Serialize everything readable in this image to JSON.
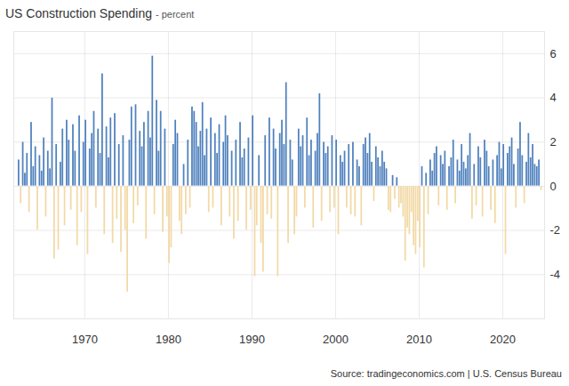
{
  "chart_data": {
    "type": "bar",
    "title": "US Construction Spending",
    "subtitle": "- percent",
    "source": "Source: tradingeconomics.com | U.S. Census Bureau",
    "x": [
      1962,
      1962.25,
      1962.5,
      1962.75,
      1963,
      1963.25,
      1963.5,
      1963.75,
      1964,
      1964.25,
      1964.5,
      1964.75,
      1965,
      1965.25,
      1965.5,
      1965.75,
      1966,
      1966.25,
      1966.5,
      1966.75,
      1967,
      1967.25,
      1967.5,
      1967.75,
      1968,
      1968.25,
      1968.5,
      1968.75,
      1969,
      1969.25,
      1969.5,
      1969.75,
      1970,
      1970.25,
      1970.5,
      1970.75,
      1971,
      1971.25,
      1971.5,
      1971.75,
      1972,
      1972.25,
      1972.5,
      1972.75,
      1973,
      1973.25,
      1973.5,
      1973.75,
      1974,
      1974.25,
      1974.5,
      1974.75,
      1975,
      1975.25,
      1975.5,
      1975.75,
      1976,
      1976.25,
      1976.5,
      1976.75,
      1977,
      1977.25,
      1977.5,
      1977.75,
      1978,
      1978.25,
      1978.5,
      1978.75,
      1979,
      1979.25,
      1979.5,
      1979.75,
      1980,
      1980.25,
      1980.5,
      1980.75,
      1981,
      1981.25,
      1981.5,
      1981.75,
      1982,
      1982.25,
      1982.5,
      1982.75,
      1983,
      1983.25,
      1983.5,
      1983.75,
      1984,
      1984.25,
      1984.5,
      1984.75,
      1985,
      1985.25,
      1985.5,
      1985.75,
      1986,
      1986.25,
      1986.5,
      1986.75,
      1987,
      1987.25,
      1987.5,
      1987.75,
      1988,
      1988.25,
      1988.5,
      1988.75,
      1989,
      1989.25,
      1989.5,
      1989.75,
      1990,
      1990.25,
      1990.5,
      1990.75,
      1991,
      1991.25,
      1991.5,
      1991.75,
      1992,
      1992.25,
      1992.5,
      1992.75,
      1993,
      1993.25,
      1993.5,
      1993.75,
      1994,
      1994.25,
      1994.5,
      1994.75,
      1995,
      1995.25,
      1995.5,
      1995.75,
      1996,
      1996.25,
      1996.5,
      1996.75,
      1997,
      1997.25,
      1997.5,
      1997.75,
      1998,
      1998.25,
      1998.5,
      1998.75,
      1999,
      1999.25,
      1999.5,
      1999.75,
      2000,
      2000.25,
      2000.5,
      2000.75,
      2001,
      2001.25,
      2001.5,
      2001.75,
      2002,
      2002.25,
      2002.5,
      2002.75,
      2003,
      2003.25,
      2003.5,
      2003.75,
      2004,
      2004.25,
      2004.5,
      2004.75,
      2005,
      2005.25,
      2005.5,
      2005.75,
      2006,
      2006.25,
      2006.5,
      2006.75,
      2007,
      2007.25,
      2007.5,
      2007.75,
      2008,
      2008.25,
      2008.5,
      2008.75,
      2009,
      2009.25,
      2009.5,
      2009.75,
      2010,
      2010.25,
      2010.5,
      2010.75,
      2011,
      2011.25,
      2011.5,
      2011.75,
      2012,
      2012.25,
      2012.5,
      2012.75,
      2013,
      2013.25,
      2013.5,
      2013.75,
      2014,
      2014.25,
      2014.5,
      2014.75,
      2015,
      2015.25,
      2015.5,
      2015.75,
      2016,
      2016.25,
      2016.5,
      2016.75,
      2017,
      2017.25,
      2017.5,
      2017.75,
      2018,
      2018.25,
      2018.5,
      2018.75,
      2019,
      2019.25,
      2019.5,
      2019.75,
      2020,
      2020.25,
      2020.5,
      2020.75,
      2021,
      2021.25,
      2021.5,
      2021.75,
      2022,
      2022.25,
      2022.5,
      2022.75,
      2023,
      2023.25,
      2023.5,
      2023.75,
      2024,
      2024.25,
      2024.5
    ],
    "values": [
      1.2,
      -0.8,
      2.0,
      0.6,
      1.5,
      -1.2,
      2.9,
      0.9,
      1.8,
      -2.0,
      1.4,
      0.7,
      2.2,
      -1.4,
      1.6,
      0.8,
      4.0,
      -3.3,
      1.9,
      -2.9,
      1.1,
      2.6,
      -1.8,
      3.0,
      2.1,
      -1.1,
      2.8,
      1.6,
      -2.7,
      3.2,
      -1.2,
      2.0,
      3.0,
      -3.1,
      1.7,
      2.4,
      3.4,
      -1.0,
      2.6,
      1.5,
      5.1,
      -2.2,
      2.7,
      1.3,
      3.1,
      -2.6,
      3.3,
      -1.5,
      1.9,
      -3.0,
      2.3,
      -2.0,
      -4.8,
      2.1,
      3.6,
      -1.7,
      3.7,
      -0.9,
      2.5,
      1.8,
      2.9,
      -2.4,
      3.4,
      2.2,
      5.9,
      -1.3,
      3.9,
      1.6,
      3.4,
      -2.1,
      2.6,
      -1.4,
      -3.5,
      -2.8,
      1.9,
      3.0,
      2.4,
      -1.6,
      -2.2,
      1.0,
      -1.3,
      2.1,
      -1.0,
      3.6,
      3.4,
      2.9,
      1.8,
      2.5,
      3.8,
      1.4,
      2.6,
      -1.2,
      3.1,
      -1.0,
      2.4,
      1.5,
      2.8,
      -1.8,
      2.0,
      3.2,
      2.3,
      -1.4,
      1.6,
      -2.4,
      2.1,
      -1.6,
      2.9,
      1.3,
      1.7,
      -2.0,
      2.2,
      -1.1,
      3.2,
      -4.1,
      -1.8,
      1.4,
      -2.6,
      -3.9,
      2.3,
      -1.3,
      3.1,
      -1.5,
      2.6,
      1.7,
      -4.1,
      2.4,
      3.0,
      1.9,
      4.7,
      -2.6,
      2.1,
      1.2,
      -2.2,
      -1.4,
      2.6,
      1.8,
      2.3,
      -1.0,
      3.1,
      1.4,
      2.1,
      -1.9,
      1.6,
      2.4,
      4.2,
      -1.6,
      2.0,
      1.5,
      1.8,
      -1.2,
      2.3,
      -1.0,
      2.1,
      -2.2,
      1.4,
      1.1,
      1.6,
      -1.0,
      1.9,
      -1.3,
      2.0,
      -1.4,
      1.2,
      0.9,
      -1.8,
      1.9,
      2.2,
      1.5,
      2.4,
      1.1,
      -0.7,
      1.8,
      1.3,
      0.9,
      1.6,
      1.1,
      0.8,
      -1.1,
      -1.2,
      0.5,
      -0.6,
      0.4,
      -1.0,
      -0.8,
      -1.4,
      -3.4,
      -1.9,
      -2.2,
      -1.2,
      -2.7,
      -3.1,
      -1.6,
      -2.8,
      0.9,
      -3.7,
      0.6,
      -1.3,
      1.2,
      0.7,
      1.5,
      1.8,
      -0.9,
      1.4,
      1.0,
      1.6,
      -1.1,
      0.9,
      1.3,
      2.1,
      -0.8,
      1.2,
      0.7,
      1.9,
      1.1,
      0.8,
      1.4,
      2.4,
      -1.5,
      1.0,
      -0.9,
      1.8,
      1.3,
      -1.4,
      2.1,
      1.6,
      0.9,
      -1.1,
      1.2,
      -1.7,
      1.4,
      2.0,
      0.8,
      1.9,
      -3.1,
      1.5,
      1.8,
      2.2,
      1.0,
      -1.0,
      1.7,
      2.9,
      1.4,
      -0.8,
      1.1,
      2.4,
      1.3,
      1.9,
      1.0,
      0.9,
      1.2,
      -0.2
    ],
    "colors": [
      "#4f81bd",
      "#f2d9a6",
      "#4f81bd",
      "#4f81bd",
      "#4f81bd",
      "#f2d9a6",
      "#4f81bd",
      "#4f81bd",
      "#4f81bd",
      "#f2d9a6",
      "#4f81bd",
      "#4f81bd",
      "#4f81bd",
      "#f2d9a6",
      "#4f81bd",
      "#4f81bd",
      "#4f81bd",
      "#f2d9a6",
      "#4f81bd",
      "#f2d9a6",
      "#4f81bd",
      "#4f81bd",
      "#f2d9a6",
      "#4f81bd",
      "#4f81bd",
      "#f2d9a6",
      "#4f81bd",
      "#4f81bd",
      "#f2d9a6",
      "#4f81bd",
      "#f2d9a6",
      "#4f81bd",
      "#4f81bd",
      "#f2d9a6",
      "#4f81bd",
      "#4f81bd",
      "#4f81bd",
      "#f2d9a6",
      "#4f81bd",
      "#4f81bd",
      "#4f81bd",
      "#f2d9a6",
      "#4f81bd",
      "#4f81bd",
      "#4f81bd",
      "#f2d9a6",
      "#4f81bd",
      "#f2d9a6",
      "#4f81bd",
      "#f2d9a6",
      "#4f81bd",
      "#f2d9a6",
      "#f2d9a6",
      "#4f81bd",
      "#4f81bd",
      "#f2d9a6",
      "#4f81bd",
      "#f2d9a6",
      "#4f81bd",
      "#4f81bd",
      "#4f81bd",
      "#f2d9a6",
      "#4f81bd",
      "#4f81bd",
      "#4f81bd",
      "#f2d9a6",
      "#4f81bd",
      "#4f81bd",
      "#4f81bd",
      "#f2d9a6",
      "#4f81bd",
      "#f2d9a6",
      "#f2d9a6",
      "#f2d9a6",
      "#4f81bd",
      "#4f81bd",
      "#4f81bd",
      "#f2d9a6",
      "#f2d9a6",
      "#4f81bd",
      "#f2d9a6",
      "#4f81bd",
      "#f2d9a6",
      "#4f81bd",
      "#4f81bd",
      "#4f81bd",
      "#4f81bd",
      "#4f81bd",
      "#4f81bd",
      "#4f81bd",
      "#4f81bd",
      "#f2d9a6",
      "#4f81bd",
      "#f2d9a6",
      "#4f81bd",
      "#4f81bd",
      "#4f81bd",
      "#f2d9a6",
      "#4f81bd",
      "#4f81bd",
      "#4f81bd",
      "#f2d9a6",
      "#4f81bd",
      "#f2d9a6",
      "#4f81bd",
      "#f2d9a6",
      "#4f81bd",
      "#4f81bd",
      "#4f81bd",
      "#f2d9a6",
      "#4f81bd",
      "#f2d9a6",
      "#4f81bd",
      "#f2d9a6",
      "#f2d9a6",
      "#4f81bd",
      "#f2d9a6",
      "#f2d9a6",
      "#4f81bd",
      "#f2d9a6",
      "#4f81bd",
      "#f2d9a6",
      "#4f81bd",
      "#4f81bd",
      "#f2d9a6",
      "#4f81bd",
      "#4f81bd",
      "#4f81bd",
      "#4f81bd",
      "#f2d9a6",
      "#4f81bd",
      "#4f81bd",
      "#f2d9a6",
      "#f2d9a6",
      "#4f81bd",
      "#4f81bd",
      "#4f81bd",
      "#f2d9a6",
      "#4f81bd",
      "#4f81bd",
      "#4f81bd",
      "#f2d9a6",
      "#4f81bd",
      "#4f81bd",
      "#4f81bd",
      "#f2d9a6",
      "#4f81bd",
      "#4f81bd",
      "#4f81bd",
      "#f2d9a6",
      "#4f81bd",
      "#f2d9a6",
      "#4f81bd",
      "#f2d9a6",
      "#4f81bd",
      "#4f81bd",
      "#4f81bd",
      "#f2d9a6",
      "#4f81bd",
      "#f2d9a6",
      "#4f81bd",
      "#f2d9a6",
      "#4f81bd",
      "#4f81bd",
      "#f2d9a6",
      "#4f81bd",
      "#4f81bd",
      "#4f81bd",
      "#4f81bd",
      "#4f81bd",
      "#f2d9a6",
      "#4f81bd",
      "#4f81bd",
      "#4f81bd",
      "#4f81bd",
      "#4f81bd",
      "#4f81bd",
      "#f2d9a6",
      "#f2d9a6",
      "#4f81bd",
      "#f2d9a6",
      "#4f81bd",
      "#f2d9a6",
      "#f2d9a6",
      "#f2d9a6",
      "#f2d9a6",
      "#f2d9a6",
      "#f2d9a6",
      "#f2d9a6",
      "#f2d9a6",
      "#f2d9a6",
      "#f2d9a6",
      "#f2d9a6",
      "#4f81bd",
      "#f2d9a6",
      "#4f81bd",
      "#f2d9a6",
      "#4f81bd",
      "#4f81bd",
      "#4f81bd",
      "#4f81bd",
      "#f2d9a6",
      "#4f81bd",
      "#4f81bd",
      "#4f81bd",
      "#f2d9a6",
      "#4f81bd",
      "#4f81bd",
      "#4f81bd",
      "#f2d9a6",
      "#4f81bd",
      "#4f81bd",
      "#4f81bd",
      "#4f81bd",
      "#4f81bd",
      "#4f81bd",
      "#4f81bd",
      "#f2d9a6",
      "#4f81bd",
      "#f2d9a6",
      "#4f81bd",
      "#4f81bd",
      "#f2d9a6",
      "#4f81bd",
      "#4f81bd",
      "#4f81bd",
      "#f2d9a6",
      "#4f81bd",
      "#f2d9a6",
      "#4f81bd",
      "#4f81bd",
      "#4f81bd",
      "#4f81bd",
      "#f2d9a6",
      "#4f81bd",
      "#4f81bd",
      "#4f81bd",
      "#4f81bd",
      "#f2d9a6",
      "#4f81bd",
      "#4f81bd",
      "#4f81bd",
      "#f2d9a6",
      "#4f81bd",
      "#4f81bd",
      "#4f81bd",
      "#4f81bd",
      "#4f81bd",
      "#4f81bd",
      "#4f81bd",
      "#f2d9a6"
    ],
    "xlim": [
      1961.5,
      2025
    ],
    "xticks": [
      1970,
      1980,
      1990,
      2000,
      2010,
      2020
    ],
    "ylim": [
      -6,
      7
    ],
    "yticks": [
      -4,
      -2,
      0,
      2,
      4,
      6
    ],
    "grid": true
  }
}
